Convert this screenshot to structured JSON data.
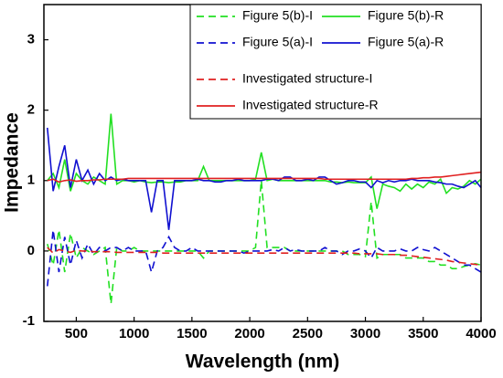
{
  "chart_data": {
    "type": "line",
    "xlabel": "Wavelength (nm)",
    "ylabel": "Impedance",
    "xlim": [
      220,
      4000
    ],
    "xticks": [
      500,
      1000,
      1500,
      2000,
      2500,
      3000,
      3500,
      4000
    ],
    "ylim": [
      -1,
      3.5
    ],
    "yticks": [
      -1,
      0,
      1,
      2,
      3
    ],
    "legend": "upper right",
    "x": [
      250,
      300,
      350,
      400,
      450,
      500,
      550,
      600,
      650,
      700,
      750,
      800,
      850,
      900,
      950,
      1000,
      1050,
      1100,
      1150,
      1200,
      1250,
      1300,
      1350,
      1400,
      1450,
      1500,
      1550,
      1600,
      1650,
      1700,
      1750,
      1800,
      1850,
      1900,
      1950,
      2000,
      2050,
      2100,
      2150,
      2200,
      2250,
      2300,
      2350,
      2400,
      2450,
      2500,
      2550,
      2600,
      2650,
      2700,
      2750,
      2800,
      2850,
      2900,
      2950,
      3000,
      3050,
      3100,
      3150,
      3200,
      3250,
      3300,
      3350,
      3400,
      3450,
      3500,
      3550,
      3600,
      3650,
      3700,
      3750,
      3800,
      3850,
      3900,
      3950,
      4000
    ],
    "series": [
      {
        "name": "Figure 5(b)-I",
        "color": "#22e022",
        "line_style": "dashed",
        "values": [
          0.1,
          -0.2,
          0.3,
          -0.3,
          0.25,
          -0.1,
          0.05,
          0.0,
          -0.05,
          0.0,
          0.05,
          -0.75,
          0.05,
          0.0,
          0.0,
          0.05,
          0.0,
          0.0,
          0.0,
          0.0,
          0.0,
          0.0,
          0.0,
          0.0,
          0.0,
          0.0,
          0.0,
          -0.1,
          0.0,
          0.0,
          0.0,
          0.0,
          0.0,
          0.0,
          0.0,
          0.0,
          0.05,
          1.0,
          0.05,
          0.05,
          0.05,
          0.05,
          0.0,
          0.0,
          0.0,
          0.0,
          0.0,
          0.0,
          0.0,
          0.0,
          0.0,
          0.0,
          -0.05,
          -0.05,
          -0.05,
          -0.08,
          0.7,
          -0.1,
          -0.05,
          -0.05,
          -0.05,
          -0.05,
          -0.1,
          -0.1,
          -0.1,
          -0.1,
          -0.15,
          -0.15,
          -0.2,
          -0.2,
          -0.25,
          -0.25,
          -0.22,
          -0.2,
          -0.18,
          -0.2
        ]
      },
      {
        "name": "Figure 5(b)-R",
        "color": "#22e022",
        "line_style": "solid",
        "values": [
          1.0,
          1.1,
          0.9,
          1.3,
          0.85,
          1.1,
          1.0,
          0.95,
          1.05,
          1.0,
          0.95,
          1.95,
          0.95,
          1.0,
          1.0,
          0.98,
          1.0,
          0.98,
          0.97,
          0.98,
          0.98,
          0.97,
          0.98,
          0.98,
          1.0,
          1.0,
          1.0,
          1.2,
          1.0,
          1.0,
          1.0,
          1.0,
          1.0,
          1.0,
          1.0,
          1.0,
          1.02,
          1.4,
          1.0,
          1.02,
          1.0,
          1.0,
          1.0,
          1.0,
          1.0,
          1.0,
          1.0,
          1.0,
          1.0,
          0.98,
          0.98,
          0.97,
          0.98,
          0.97,
          0.97,
          0.97,
          1.05,
          0.6,
          0.95,
          0.92,
          0.9,
          0.85,
          0.95,
          0.88,
          0.95,
          0.9,
          0.98,
          0.95,
          1.02,
          0.82,
          0.9,
          0.88,
          0.92,
          1.0,
          0.95,
          1.02
        ]
      },
      {
        "name": "Figure 5(a)-I",
        "color": "#1010d0",
        "line_style": "dashed",
        "values": [
          -0.5,
          0.3,
          -0.3,
          0.2,
          -0.2,
          0.15,
          -0.1,
          0.1,
          -0.05,
          0.05,
          0.0,
          0.05,
          0.05,
          0.0,
          0.05,
          0.0,
          0.0,
          0.0,
          -0.3,
          0.0,
          0.05,
          0.2,
          0.05,
          0.0,
          0.0,
          0.05,
          0.0,
          0.0,
          0.0,
          0.0,
          0.0,
          0.0,
          0.0,
          0.0,
          -0.03,
          0.0,
          0.0,
          0.0,
          0.0,
          0.02,
          0.0,
          0.05,
          0.0,
          0.02,
          0.0,
          0.0,
          0.0,
          0.0,
          0.05,
          0.0,
          0.0,
          -0.05,
          0.0,
          0.0,
          0.03,
          0.0,
          -0.1,
          0.05,
          0.0,
          0.0,
          0.0,
          0.03,
          0.0,
          0.0,
          0.05,
          0.02,
          0.0,
          0.05,
          0.0,
          -0.05,
          -0.1,
          -0.15,
          -0.2,
          -0.2,
          -0.25,
          -0.3
        ]
      },
      {
        "name": "Figure 5(a)-R",
        "color": "#1010d0",
        "line_style": "solid",
        "values": [
          1.75,
          0.85,
          1.2,
          1.5,
          0.9,
          1.3,
          1.0,
          1.15,
          0.95,
          1.1,
          1.0,
          1.05,
          1.0,
          1.02,
          1.0,
          1.0,
          1.0,
          1.0,
          0.55,
          1.0,
          1.0,
          0.3,
          1.0,
          1.0,
          1.0,
          1.0,
          1.02,
          1.0,
          1.0,
          0.98,
          0.98,
          1.0,
          1.0,
          1.02,
          1.0,
          1.0,
          1.0,
          1.0,
          1.02,
          1.02,
          1.0,
          1.05,
          1.05,
          1.0,
          1.0,
          1.02,
          1.0,
          1.05,
          1.05,
          1.0,
          0.95,
          0.97,
          1.0,
          1.0,
          0.98,
          0.98,
          0.9,
          1.0,
          0.97,
          1.0,
          0.98,
          1.0,
          1.0,
          1.02,
          1.0,
          1.0,
          1.0,
          0.98,
          0.97,
          0.95,
          0.95,
          0.92,
          0.9,
          0.95,
          1.0,
          0.9
        ]
      },
      {
        "name": "Investigated structure-I",
        "color": "#e02020",
        "line_style": "dashed",
        "values": [
          0.05,
          -0.03,
          0.02,
          0.0,
          -0.02,
          0.01,
          0.0,
          0.0,
          -0.01,
          -0.01,
          -0.01,
          -0.01,
          -0.02,
          -0.02,
          -0.02,
          -0.02,
          -0.02,
          -0.02,
          -0.02,
          -0.02,
          -0.03,
          -0.03,
          -0.03,
          -0.03,
          -0.03,
          -0.03,
          -0.03,
          -0.03,
          -0.03,
          -0.03,
          -0.03,
          -0.03,
          -0.03,
          -0.03,
          -0.03,
          -0.03,
          -0.03,
          -0.03,
          -0.03,
          -0.03,
          -0.03,
          -0.03,
          -0.03,
          -0.03,
          -0.03,
          -0.03,
          -0.03,
          -0.03,
          -0.03,
          -0.03,
          -0.03,
          -0.03,
          -0.03,
          -0.03,
          -0.04,
          -0.04,
          -0.04,
          -0.04,
          -0.05,
          -0.05,
          -0.05,
          -0.06,
          -0.06,
          -0.07,
          -0.08,
          -0.09,
          -0.1,
          -0.11,
          -0.12,
          -0.13,
          -0.15,
          -0.16,
          -0.17,
          -0.18,
          -0.19,
          -0.2
        ]
      },
      {
        "name": "Investigated structure-R",
        "color": "#e02020",
        "line_style": "solid",
        "values": [
          1.0,
          1.02,
          0.98,
          1.0,
          1.01,
          0.99,
          1.0,
          1.0,
          1.01,
          1.01,
          1.02,
          1.02,
          1.02,
          1.02,
          1.03,
          1.03,
          1.03,
          1.03,
          1.03,
          1.03,
          1.03,
          1.03,
          1.03,
          1.03,
          1.03,
          1.03,
          1.03,
          1.03,
          1.03,
          1.03,
          1.03,
          1.03,
          1.03,
          1.03,
          1.03,
          1.03,
          1.03,
          1.03,
          1.03,
          1.03,
          1.03,
          1.03,
          1.03,
          1.03,
          1.03,
          1.03,
          1.03,
          1.03,
          1.02,
          1.02,
          1.02,
          1.02,
          1.02,
          1.02,
          1.02,
          1.02,
          1.02,
          1.02,
          1.02,
          1.02,
          1.02,
          1.02,
          1.02,
          1.03,
          1.03,
          1.04,
          1.04,
          1.05,
          1.05,
          1.06,
          1.07,
          1.08,
          1.09,
          1.1,
          1.11,
          1.12
        ]
      }
    ]
  }
}
